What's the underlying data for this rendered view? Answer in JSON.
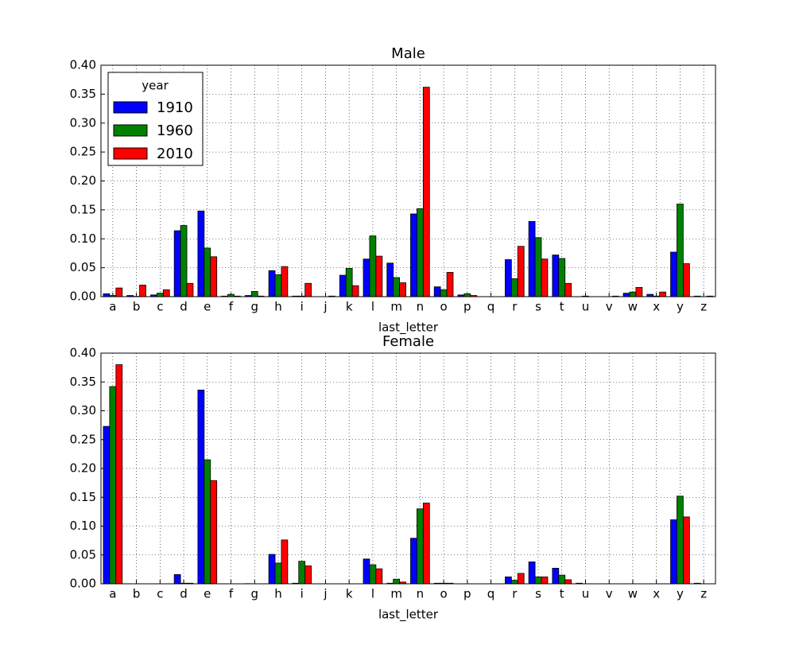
{
  "chart_data": [
    {
      "type": "bar",
      "title": "Male",
      "xlabel": "last_letter",
      "categories": [
        "a",
        "b",
        "c",
        "d",
        "e",
        "f",
        "g",
        "h",
        "i",
        "j",
        "k",
        "l",
        "m",
        "n",
        "o",
        "p",
        "q",
        "r",
        "s",
        "t",
        "u",
        "v",
        "w",
        "x",
        "y",
        "z"
      ],
      "series": [
        {
          "name": "1910",
          "color": "#0000ff",
          "values": [
            0.005,
            0.002,
            0.003,
            0.114,
            0.148,
            0.001,
            0.002,
            0.045,
            0.001,
            0,
            0.037,
            0.065,
            0.058,
            0.143,
            0.017,
            0.003,
            0,
            0.064,
            0.13,
            0.072,
            0,
            0,
            0.006,
            0.004,
            0.077,
            0.001
          ]
        },
        {
          "name": "1960",
          "color": "#008000",
          "values": [
            0.002,
            0.0005,
            0.006,
            0.123,
            0.084,
            0.004,
            0.009,
            0.038,
            0.001,
            0,
            0.049,
            0.105,
            0.033,
            0.152,
            0.012,
            0.005,
            0,
            0.031,
            0.102,
            0.066,
            0.001,
            0,
            0.008,
            0.001,
            0.16,
            0
          ]
        },
        {
          "name": "2010",
          "color": "#ff0000",
          "values": [
            0.015,
            0.02,
            0.012,
            0.023,
            0.069,
            0.001,
            0.001,
            0.052,
            0.023,
            0.001,
            0.019,
            0.07,
            0.024,
            0.362,
            0.042,
            0.002,
            0,
            0.087,
            0.065,
            0.023,
            0,
            0.001,
            0.016,
            0.008,
            0.057,
            0.001
          ]
        }
      ],
      "ylim": [
        0,
        0.4
      ],
      "yticks": [
        {
          "value": 0,
          "label": "0.00"
        },
        {
          "value": 0.05,
          "label": "0.05"
        },
        {
          "value": 0.1,
          "label": "0.10"
        },
        {
          "value": 0.15,
          "label": "0.15"
        },
        {
          "value": 0.2,
          "label": "0.20"
        },
        {
          "value": 0.25,
          "label": "0.25"
        },
        {
          "value": 0.3,
          "label": "0.30"
        },
        {
          "value": 0.35,
          "label": "0.35"
        },
        {
          "value": 0.4,
          "label": "0.40"
        }
      ],
      "grid": true,
      "legend": "upper left",
      "legend_title": "year"
    },
    {
      "type": "bar",
      "title": "Female",
      "xlabel": "last_letter",
      "categories": [
        "a",
        "b",
        "c",
        "d",
        "e",
        "f",
        "g",
        "h",
        "i",
        "j",
        "k",
        "l",
        "m",
        "n",
        "o",
        "p",
        "q",
        "r",
        "s",
        "t",
        "u",
        "v",
        "w",
        "x",
        "y",
        "z"
      ],
      "series": [
        {
          "color": "#0000ff",
          "values": [
            0.273,
            0,
            0,
            0.016,
            0.336,
            0,
            0.0003,
            0.051,
            0.001,
            0,
            0,
            0.043,
            0.001,
            0.079,
            0.001,
            0,
            0,
            0.012,
            0.038,
            0.027,
            0.001,
            0,
            0,
            0,
            0.111,
            0.001
          ]
        },
        {
          "color": "#008000",
          "values": [
            0.342,
            0,
            0,
            0.001,
            0.215,
            0,
            0,
            0.036,
            0.039,
            0,
            0,
            0.033,
            0.008,
            0.13,
            0.001,
            0,
            0,
            0.006,
            0.012,
            0.015,
            0,
            0,
            0,
            0,
            0.152,
            0
          ]
        },
        {
          "color": "#ff0000",
          "values": [
            0.38,
            0,
            0,
            0.001,
            0.179,
            0,
            0,
            0.076,
            0.031,
            0,
            0,
            0.026,
            0.003,
            0.14,
            0.001,
            0,
            0,
            0.018,
            0.012,
            0.007,
            0,
            0,
            0,
            0,
            0.116,
            0
          ]
        }
      ],
      "ylim": [
        0,
        0.4
      ],
      "yticks": [
        {
          "value": 0,
          "label": "0.00"
        },
        {
          "value": 0.05,
          "label": "0.05"
        },
        {
          "value": 0.1,
          "label": "0.10"
        },
        {
          "value": 0.15,
          "label": "0.15"
        },
        {
          "value": 0.2,
          "label": "0.20"
        },
        {
          "value": 0.25,
          "label": "0.25"
        },
        {
          "value": 0.3,
          "label": "0.30"
        },
        {
          "value": 0.35,
          "label": "0.35"
        },
        {
          "value": 0.4,
          "label": "0.40"
        }
      ],
      "grid": true
    }
  ]
}
